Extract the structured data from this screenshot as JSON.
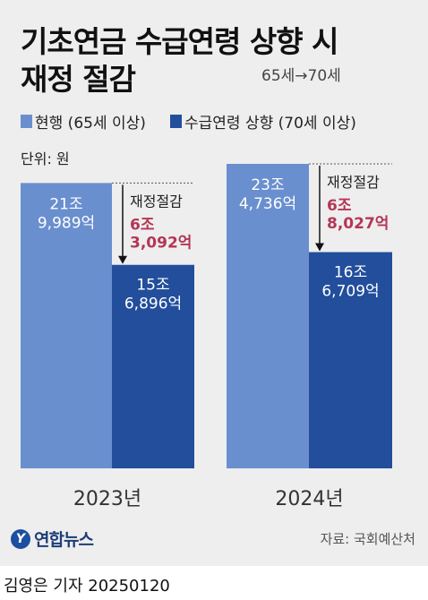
{
  "header": {
    "title_line1": "기초연금 수급연령 상향 시",
    "title_line2": "재정 절감",
    "subtitle": "65세→70세"
  },
  "legend": {
    "current": "현행 (65세 이상)",
    "raised": "수급연령 상향 (70세 이상)"
  },
  "unit": "단위: 원",
  "colors": {
    "current": "#6a8fcf",
    "raised": "#224e9c",
    "savings": "#b43655",
    "background": "#eeeeee"
  },
  "chart_data": {
    "type": "bar",
    "categories": [
      "2023년",
      "2024년"
    ],
    "series": [
      {
        "name": "현행 (65세 이상)",
        "values": [
          21.9989,
          23.4736
        ],
        "labels": [
          "21조\n9,989억",
          "23조\n4,736억"
        ]
      },
      {
        "name": "수급연령 상향 (70세 이상)",
        "values": [
          15.6896,
          16.6709
        ],
        "labels": [
          "15조\n6,896억",
          "16조\n6,709억"
        ]
      }
    ],
    "annotations": [
      {
        "category": "2023년",
        "label": "재정절감",
        "value_label": "6조\n3,092억"
      },
      {
        "category": "2024년",
        "label": "재정절감",
        "value_label": "6조\n8,027억"
      }
    ],
    "unit": "원",
    "ylim": [
      0,
      23.4736
    ]
  },
  "footer": {
    "logo_mark": "Y",
    "logo_text": "연합뉴스",
    "source": "자료: 국회예산처",
    "byline": "김영은 기자  20250120"
  }
}
